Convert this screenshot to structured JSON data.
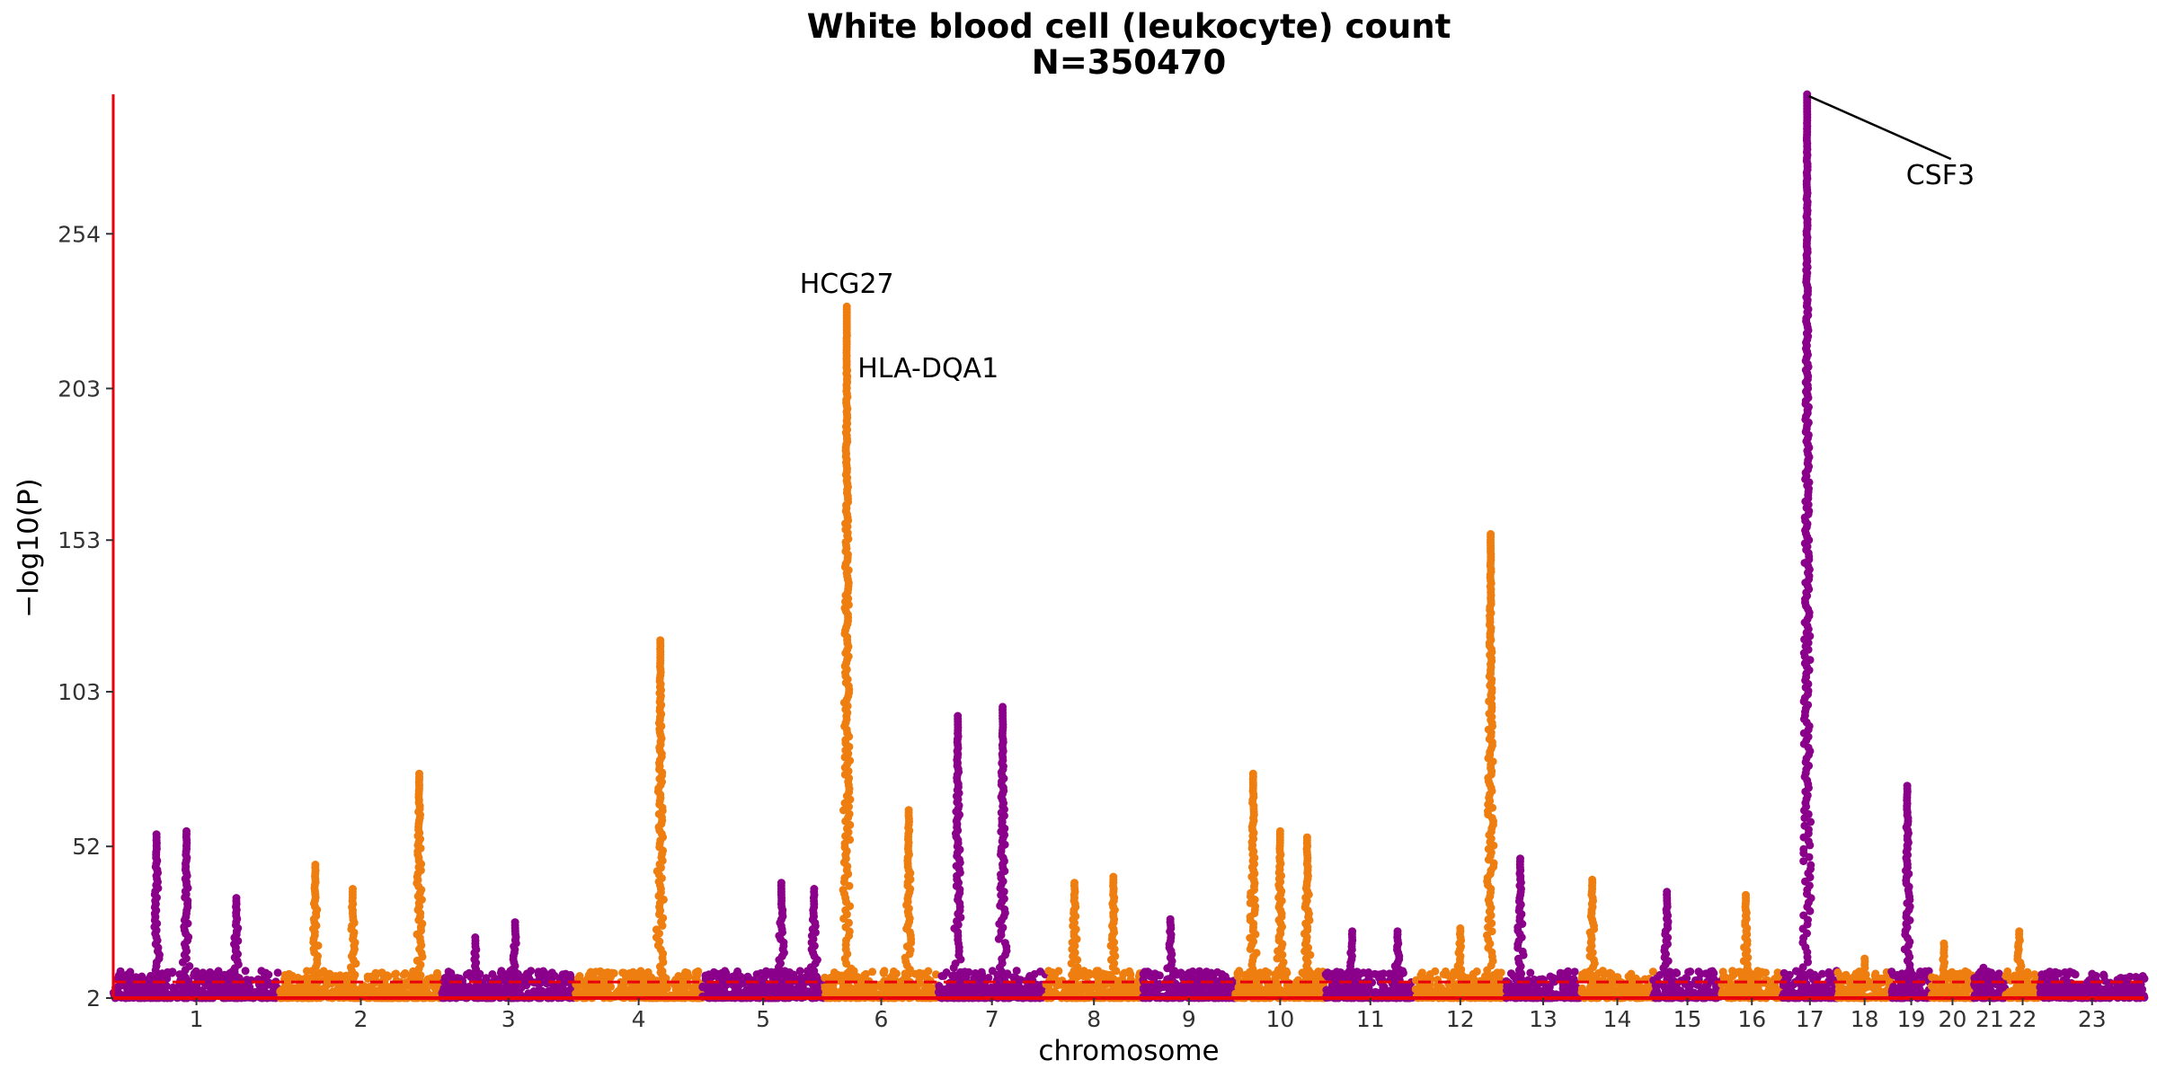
{
  "chart_data": {
    "type": "scatter",
    "subtype": "manhattan",
    "title": "White blood cell (leukocyte) count",
    "subtitle": "N=350470",
    "xlabel": "chromosome",
    "ylabel": "−log10(P)",
    "yticks": [
      2,
      52,
      103,
      153,
      203,
      254
    ],
    "ylim": [
      2,
      300
    ],
    "significance_threshold": 7.3,
    "colors": {
      "odd_chromosome": "#8b008b",
      "even_chromosome": "#ef7e10",
      "threshold": "#e8000b",
      "axis": "#e8000b"
    },
    "chromosomes": [
      {
        "label": "1",
        "size": 248
      },
      {
        "label": "2",
        "size": 242
      },
      {
        "label": "3",
        "size": 198
      },
      {
        "label": "4",
        "size": 190
      },
      {
        "label": "5",
        "size": 181
      },
      {
        "label": "6",
        "size": 171
      },
      {
        "label": "7",
        "size": 159
      },
      {
        "label": "8",
        "size": 145
      },
      {
        "label": "9",
        "size": 138
      },
      {
        "label": "10",
        "size": 134
      },
      {
        "label": "11",
        "size": 135
      },
      {
        "label": "12",
        "size": 133
      },
      {
        "label": "13",
        "size": 114
      },
      {
        "label": "14",
        "size": 107
      },
      {
        "label": "15",
        "size": 102
      },
      {
        "label": "16",
        "size": 90
      },
      {
        "label": "17",
        "size": 83
      },
      {
        "label": "18",
        "size": 80
      },
      {
        "label": "19",
        "size": 59
      },
      {
        "label": "20",
        "size": 64
      },
      {
        "label": "21",
        "size": 47
      },
      {
        "label": "22",
        "size": 51
      },
      {
        "label": "23",
        "size": 156
      }
    ],
    "peaks": [
      {
        "chr": "1",
        "pos": 0.26,
        "y": 56
      },
      {
        "chr": "1",
        "pos": 0.44,
        "y": 57
      },
      {
        "chr": "1",
        "pos": 0.74,
        "y": 35
      },
      {
        "chr": "2",
        "pos": 0.22,
        "y": 46
      },
      {
        "chr": "2",
        "pos": 0.45,
        "y": 38
      },
      {
        "chr": "2",
        "pos": 0.86,
        "y": 76
      },
      {
        "chr": "3",
        "pos": 0.25,
        "y": 22
      },
      {
        "chr": "3",
        "pos": 0.55,
        "y": 27
      },
      {
        "chr": "4",
        "pos": 0.67,
        "y": 120
      },
      {
        "chr": "5",
        "pos": 0.65,
        "y": 40
      },
      {
        "chr": "5",
        "pos": 0.92,
        "y": 38
      },
      {
        "chr": "6",
        "pos": 0.2,
        "y": 230
      },
      {
        "chr": "6",
        "pos": 0.74,
        "y": 64
      },
      {
        "chr": "7",
        "pos": 0.18,
        "y": 95
      },
      {
        "chr": "7",
        "pos": 0.6,
        "y": 98
      },
      {
        "chr": "8",
        "pos": 0.3,
        "y": 40
      },
      {
        "chr": "8",
        "pos": 0.7,
        "y": 42
      },
      {
        "chr": "9",
        "pos": 0.3,
        "y": 28
      },
      {
        "chr": "10",
        "pos": 0.2,
        "y": 76
      },
      {
        "chr": "10",
        "pos": 0.5,
        "y": 57
      },
      {
        "chr": "10",
        "pos": 0.8,
        "y": 55
      },
      {
        "chr": "11",
        "pos": 0.3,
        "y": 24
      },
      {
        "chr": "11",
        "pos": 0.8,
        "y": 24
      },
      {
        "chr": "12",
        "pos": 0.5,
        "y": 25
      },
      {
        "chr": "12",
        "pos": 0.84,
        "y": 155
      },
      {
        "chr": "13",
        "pos": 0.2,
        "y": 48
      },
      {
        "chr": "14",
        "pos": 0.15,
        "y": 41
      },
      {
        "chr": "15",
        "pos": 0.2,
        "y": 37
      },
      {
        "chr": "16",
        "pos": 0.4,
        "y": 36
      },
      {
        "chr": "17",
        "pos": 0.45,
        "y": 300
      },
      {
        "chr": "18",
        "pos": 0.5,
        "y": 15
      },
      {
        "chr": "19",
        "pos": 0.4,
        "y": 72
      },
      {
        "chr": "20",
        "pos": 0.3,
        "y": 20
      },
      {
        "chr": "21",
        "pos": 0.3,
        "y": 12
      },
      {
        "chr": "22",
        "pos": 0.4,
        "y": 24
      },
      {
        "chr": "23",
        "pos": 0.5,
        "y": 10
      }
    ],
    "annotations": [
      {
        "text": "HCG27",
        "chr": "6",
        "pos": 0.2,
        "y": 231
      },
      {
        "text": "HLA-DQA1",
        "chr": "6",
        "pos": 0.2,
        "y": 210
      },
      {
        "text": "CSF3",
        "chr": "17",
        "pos": 0.45,
        "y": 300
      }
    ]
  }
}
